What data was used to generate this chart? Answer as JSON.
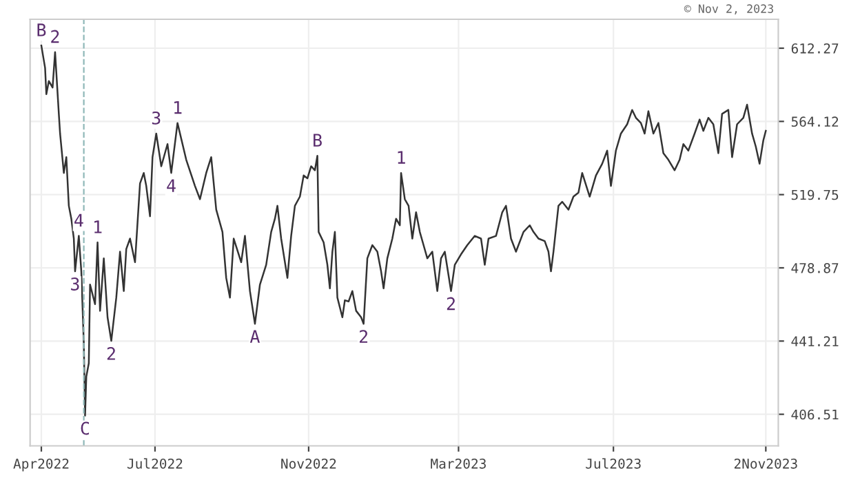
{
  "chart_data": {
    "type": "line",
    "log": true,
    "grid": true,
    "marker": "none",
    "line_style": "solid",
    "x": [
      "2022-04-01",
      "2022-04-04",
      "2022-04-05",
      "2022-04-07",
      "2022-04-10",
      "2022-04-12",
      "2022-04-15",
      "2022-04-16",
      "2022-04-19",
      "2022-04-21",
      "2022-04-23",
      "2022-04-25",
      "2022-04-27",
      "2022-04-28",
      "2022-05-01",
      "2022-05-03",
      "2022-05-05",
      "2022-05-06",
      "2022-05-07",
      "2022-05-09",
      "2022-05-10",
      "2022-05-14",
      "2022-05-16",
      "2022-05-18",
      "2022-05-21",
      "2022-05-24",
      "2022-05-27",
      "2022-05-31",
      "2022-06-03",
      "2022-06-06",
      "2022-06-08",
      "2022-06-11",
      "2022-06-15",
      "2022-06-19",
      "2022-06-22",
      "2022-06-24",
      "2022-06-27",
      "2022-06-29",
      "2022-07-02",
      "2022-07-06",
      "2022-07-11",
      "2022-07-14",
      "2022-07-19",
      "2022-07-26",
      "2022-08-02",
      "2022-08-06",
      "2022-08-11",
      "2022-08-15",
      "2022-08-19",
      "2022-08-24",
      "2022-08-27",
      "2022-08-30",
      "2022-09-02",
      "2022-09-08",
      "2022-09-11",
      "2022-09-15",
      "2022-09-19",
      "2022-09-23",
      "2022-09-28",
      "2022-10-02",
      "2022-10-05",
      "2022-10-07",
      "2022-10-10",
      "2022-10-15",
      "2022-10-18",
      "2022-10-21",
      "2022-10-25",
      "2022-10-28",
      "2022-10-31",
      "2022-11-03",
      "2022-11-06",
      "2022-11-08",
      "2022-11-09",
      "2022-11-13",
      "2022-11-16",
      "2022-11-18",
      "2022-11-20",
      "2022-11-22",
      "2022-11-24",
      "2022-11-28",
      "2022-11-30",
      "2022-12-03",
      "2022-12-06",
      "2022-12-09",
      "2022-12-13",
      "2022-12-15",
      "2022-12-18",
      "2022-12-20",
      "2022-12-22",
      "2022-12-26",
      "2022-12-29",
      "2022-12-31",
      "2023-01-03",
      "2023-01-07",
      "2023-01-10",
      "2023-01-13",
      "2023-01-14",
      "2023-01-17",
      "2023-01-20",
      "2023-01-23",
      "2023-01-26",
      "2023-01-29",
      "2023-02-01",
      "2023-02-04",
      "2023-02-08",
      "2023-02-12",
      "2023-02-15",
      "2023-02-18",
      "2023-02-23",
      "2023-02-26",
      "2023-03-03",
      "2023-03-08",
      "2023-03-14",
      "2023-03-19",
      "2023-03-22",
      "2023-03-25",
      "2023-03-31",
      "2023-04-05",
      "2023-04-08",
      "2023-04-12",
      "2023-04-16",
      "2023-04-22",
      "2023-04-27",
      "2023-04-30",
      "2023-05-04",
      "2023-05-09",
      "2023-05-12",
      "2023-05-14",
      "2023-05-16",
      "2023-05-20",
      "2023-05-23",
      "2023-05-28",
      "2023-06-01",
      "2023-06-05",
      "2023-06-08",
      "2023-06-14",
      "2023-06-19",
      "2023-06-24",
      "2023-06-28",
      "2023-07-01",
      "2023-07-05",
      "2023-07-09",
      "2023-07-14",
      "2023-07-18",
      "2023-07-21",
      "2023-07-25",
      "2023-07-28",
      "2023-07-31",
      "2023-08-04",
      "2023-08-08",
      "2023-08-12",
      "2023-08-16",
      "2023-08-21",
      "2023-08-25",
      "2023-08-28",
      "2023-09-01",
      "2023-09-06",
      "2023-09-10",
      "2023-09-13",
      "2023-09-17",
      "2023-09-21",
      "2023-09-25",
      "2023-09-28",
      "2023-10-03",
      "2023-10-06",
      "2023-10-10",
      "2023-10-15",
      "2023-10-18",
      "2023-10-22",
      "2023-10-25",
      "2023-10-28",
      "2023-10-31",
      "2023-11-02"
    ],
    "series": [
      {
        "color": "#333333",
        "values": [
          614.1,
          598.9,
          581.6,
          590.2,
          585.9,
          609.6,
          568.9,
          556.5,
          532.5,
          542.0,
          513.3,
          505.9,
          494.8,
          477.0,
          496.3,
          477.0,
          440.0,
          405.9,
          424.1,
          430.4,
          470.0,
          459.8,
          492.7,
          456.4,
          484.0,
          453.1,
          441.3,
          463.2,
          487.6,
          466.6,
          489.1,
          494.8,
          481.9,
          526.3,
          532.5,
          524.8,
          507.3,
          542.0,
          556.5,
          536.5,
          550.0,
          532.5,
          563.1,
          540.4,
          524.8,
          517.1,
          532.5,
          542.0,
          511.1,
          498.5,
          473.5,
          463.2,
          494.8,
          481.9,
          496.3,
          466.6,
          449.8,
          470.0,
          480.5,
          498.5,
          505.9,
          513.3,
          494.8,
          473.5,
          496.3,
          513.3,
          518.6,
          531.0,
          529.3,
          536.5,
          534.1,
          542.8,
          498.5,
          492.7,
          480.5,
          468.0,
          487.6,
          498.5,
          463.2,
          453.1,
          461.8,
          461.2,
          466.6,
          456.4,
          453.1,
          449.8,
          484.0,
          487.6,
          491.2,
          487.6,
          477.0,
          468.0,
          484.0,
          494.8,
          505.9,
          502.2,
          532.5,
          517.1,
          513.3,
          494.8,
          509.6,
          498.5,
          491.2,
          484.0,
          487.6,
          466.6,
          484.0,
          487.6,
          466.6,
          480.5,
          486.2,
          491.2,
          496.3,
          494.8,
          480.5,
          494.8,
          496.3,
          509.6,
          513.3,
          494.8,
          487.6,
          498.5,
          502.2,
          498.5,
          494.8,
          493.4,
          487.6,
          477.0,
          487.6,
          513.3,
          515.6,
          511.1,
          518.6,
          520.9,
          532.5,
          518.6,
          531.0,
          538.0,
          546.0,
          524.8,
          546.0,
          556.5,
          562.3,
          571.4,
          566.4,
          563.1,
          556.5,
          570.6,
          556.5,
          563.1,
          544.4,
          540.4,
          534.1,
          540.4,
          550.0,
          546.0,
          556.5,
          565.3,
          558.2,
          566.4,
          562.3,
          544.4,
          568.9,
          571.4,
          542.0,
          562.3,
          566.4,
          574.8,
          556.5,
          548.4,
          538.0,
          552.2,
          558.2
        ]
      }
    ],
    "xlim": [
      "2022-03-23",
      "2023-11-12"
    ],
    "xticks": [
      {
        "value": "2022-04-01",
        "label": "Apr2022"
      },
      {
        "value": "2022-07-01",
        "label": "Jul2022"
      },
      {
        "value": "2022-11-01",
        "label": "Nov2022"
      },
      {
        "value": "2023-03-01",
        "label": "Mar2023"
      },
      {
        "value": "2023-07-03",
        "label": "Jul2023"
      },
      {
        "value": "2023-11-02",
        "label": "2Nov2023"
      }
    ],
    "ylim": [
      392.4,
      632.4
    ],
    "yticks": [
      406.51,
      441.21,
      478.87,
      519.75,
      564.12,
      612.27
    ],
    "ref_lines": [
      {
        "axis": "x",
        "value": "2022-05-05",
        "label": null,
        "color": "#8fb8b8",
        "line_style": "dashed"
      }
    ],
    "annotations": [
      {
        "text": "B",
        "x": "2022-04-01",
        "y": 614.1
      },
      {
        "text": "2",
        "x": "2022-04-12",
        "y": 609.6
      },
      {
        "text": "3",
        "x": "2022-04-28",
        "y": 477.0
      },
      {
        "text": "4",
        "x": "2022-05-01",
        "y": 496.3
      },
      {
        "text": "C",
        "x": "2022-05-06",
        "y": 405.9
      },
      {
        "text": "1",
        "x": "2022-05-16",
        "y": 492.7
      },
      {
        "text": "2",
        "x": "2022-05-27",
        "y": 441.3
      },
      {
        "text": "3",
        "x": "2022-07-02",
        "y": 556.5
      },
      {
        "text": "4",
        "x": "2022-07-14",
        "y": 532.5
      },
      {
        "text": "1",
        "x": "2022-07-19",
        "y": 563.1
      },
      {
        "text": "A",
        "x": "2022-09-19",
        "y": 449.8
      },
      {
        "text": "B",
        "x": "2022-11-08",
        "y": 542.8
      },
      {
        "text": "2",
        "x": "2022-12-15",
        "y": 449.8
      },
      {
        "text": "1",
        "x": "2023-01-14",
        "y": 532.5
      },
      {
        "text": "2",
        "x": "2023-02-23",
        "y": 466.6
      },
      "© Nov 2, 2023"
    ]
  }
}
